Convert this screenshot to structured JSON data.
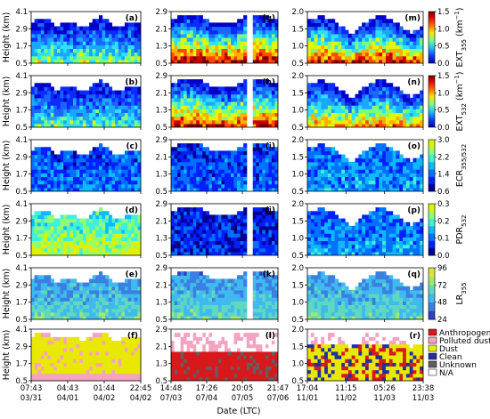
{
  "chart_data": {
    "type": "heatmap",
    "ylabel": "Height (km)",
    "xlabel": "Date (LTC)",
    "columns": [
      {
        "ylim": [
          0.5,
          4.1
        ],
        "yticks": [
          "4.1",
          "2.9",
          "1.7",
          "0.5"
        ],
        "ytick_values": [
          4.1,
          2.9,
          1.7,
          0.5
        ],
        "xticks": [
          {
            "time": "07:43",
            "date": "03/31"
          },
          {
            "time": "04:43",
            "date": "04/01"
          },
          {
            "time": "01:44",
            "date": "04/02"
          },
          {
            "time": "22:45",
            "date": "04/02"
          }
        ]
      },
      {
        "ylim": [
          0.5,
          2.9
        ],
        "yticks": [
          "2.9",
          "2.1",
          "1.3",
          "0.5"
        ],
        "ytick_values": [
          2.9,
          2.1,
          1.3,
          0.5
        ],
        "xticks": [
          {
            "time": "14:48",
            "date": "07/03"
          },
          {
            "time": "17:26",
            "date": "07/04"
          },
          {
            "time": "20:05",
            "date": "07/05"
          },
          {
            "time": "21:47",
            "date": "07/06"
          }
        ]
      },
      {
        "ylim": [
          0.5,
          2.0
        ],
        "yticks": [
          "2.0",
          "1.5",
          "1.0",
          "0.5"
        ],
        "ytick_values": [
          2.0,
          1.5,
          1.0,
          0.5
        ],
        "xticks": [
          {
            "time": "17:04",
            "date": "11/01"
          },
          {
            "time": "11:15",
            "date": "11/02"
          },
          {
            "time": "05:26",
            "date": "11/03"
          },
          {
            "time": "23:38",
            "date": "11/03"
          }
        ]
      }
    ],
    "rows": [
      {
        "panels": [
          "(a)",
          "(g)",
          "(m)"
        ],
        "quantity": "EXT",
        "subscript": "355",
        "unit": " (km",
        "unit_exp": "−1",
        "unit_end": ")",
        "colorbar": {
          "ticks": [
            "1.5",
            "1.0",
            "0.5",
            "0.0"
          ],
          "range": [
            0,
            1.5
          ],
          "scale": "extinction"
        }
      },
      {
        "panels": [
          "(b)",
          "(h)",
          "(n)"
        ],
        "quantity": "EXT",
        "subscript": "532",
        "unit": " (km",
        "unit_exp": "−1",
        "unit_end": ")",
        "colorbar": {
          "ticks": [
            "1.5",
            "1.0",
            "0.5",
            "0.0"
          ],
          "range": [
            0,
            1.5
          ],
          "scale": "extinction"
        }
      },
      {
        "panels": [
          "(c)",
          "(i)",
          "(o)"
        ],
        "quantity": "ECR",
        "subscript": "355/532",
        "colorbar": {
          "ticks": [
            "3.0",
            "2.2",
            "1.4",
            "0.6"
          ],
          "range": [
            0.6,
            3.0
          ],
          "scale": "ratio"
        }
      },
      {
        "panels": [
          "(d)",
          "(j)",
          "(p)"
        ],
        "quantity": "PDR",
        "subscript": "532",
        "colorbar": {
          "ticks": [
            "0.3",
            "0.2",
            "0.1",
            "0.0"
          ],
          "range": [
            0,
            0.3
          ],
          "scale": "ratio"
        }
      },
      {
        "panels": [
          "(e)",
          "(k)",
          "(q)"
        ],
        "quantity": "LR",
        "subscript": "355",
        "colorbar": {
          "ticks": [
            "96",
            "72",
            "48",
            "24"
          ],
          "range": [
            24,
            96
          ],
          "scale": "ratio"
        }
      },
      {
        "panels": [
          "(f)",
          "(l)",
          "(r)"
        ],
        "quantity": "classification",
        "legend": [
          {
            "label": "Anthropogenic",
            "color": "#d7191c"
          },
          {
            "label": "Polluted dust",
            "color": "#f4a3c0"
          },
          {
            "label": "Dust",
            "color": "#e8e800"
          },
          {
            "label": "Clean",
            "color": "#2030a0"
          },
          {
            "label": "Unknown",
            "color": "#606060"
          },
          {
            "label": "N/A",
            "color": "#ffffff"
          }
        ]
      }
    ]
  }
}
